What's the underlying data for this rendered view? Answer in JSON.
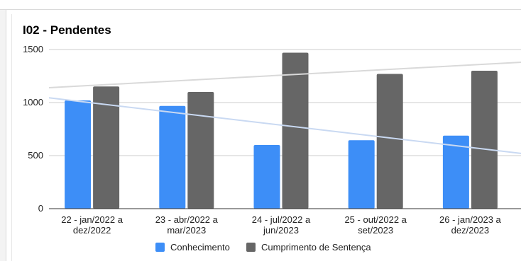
{
  "chart_data": {
    "type": "bar",
    "title": "I02 - Pendentes",
    "categories": [
      [
        "22 - jan/2022 a",
        "dez/2022"
      ],
      [
        "23 - abr/2022 a",
        "mar/2023"
      ],
      [
        "24 - jul/2022 a",
        "jun/2023"
      ],
      [
        "25 - out/2022 a",
        "set/2023"
      ],
      [
        "26 - jan/2023 a",
        "dez/2023"
      ]
    ],
    "series": [
      {
        "name": "Conhecimento",
        "color": "#3d8ef7",
        "values": [
          1020,
          968,
          600,
          645,
          688
        ]
      },
      {
        "name": "Cumprimento de Sentença",
        "color": "#666666",
        "values": [
          1152,
          1100,
          1470,
          1270,
          1300
        ]
      }
    ],
    "trendlines": [
      {
        "series": "Conhecimento",
        "color": "#c9d9f2",
        "start": 1045,
        "end": 520
      },
      {
        "series": "Cumprimento de Sentença",
        "color": "#d9d9d9",
        "start": 1140,
        "end": 1380
      }
    ],
    "yticks": [
      0,
      500,
      1000,
      1500
    ],
    "ylim": [
      0,
      1500
    ],
    "grid": true,
    "legend": "bottom"
  }
}
